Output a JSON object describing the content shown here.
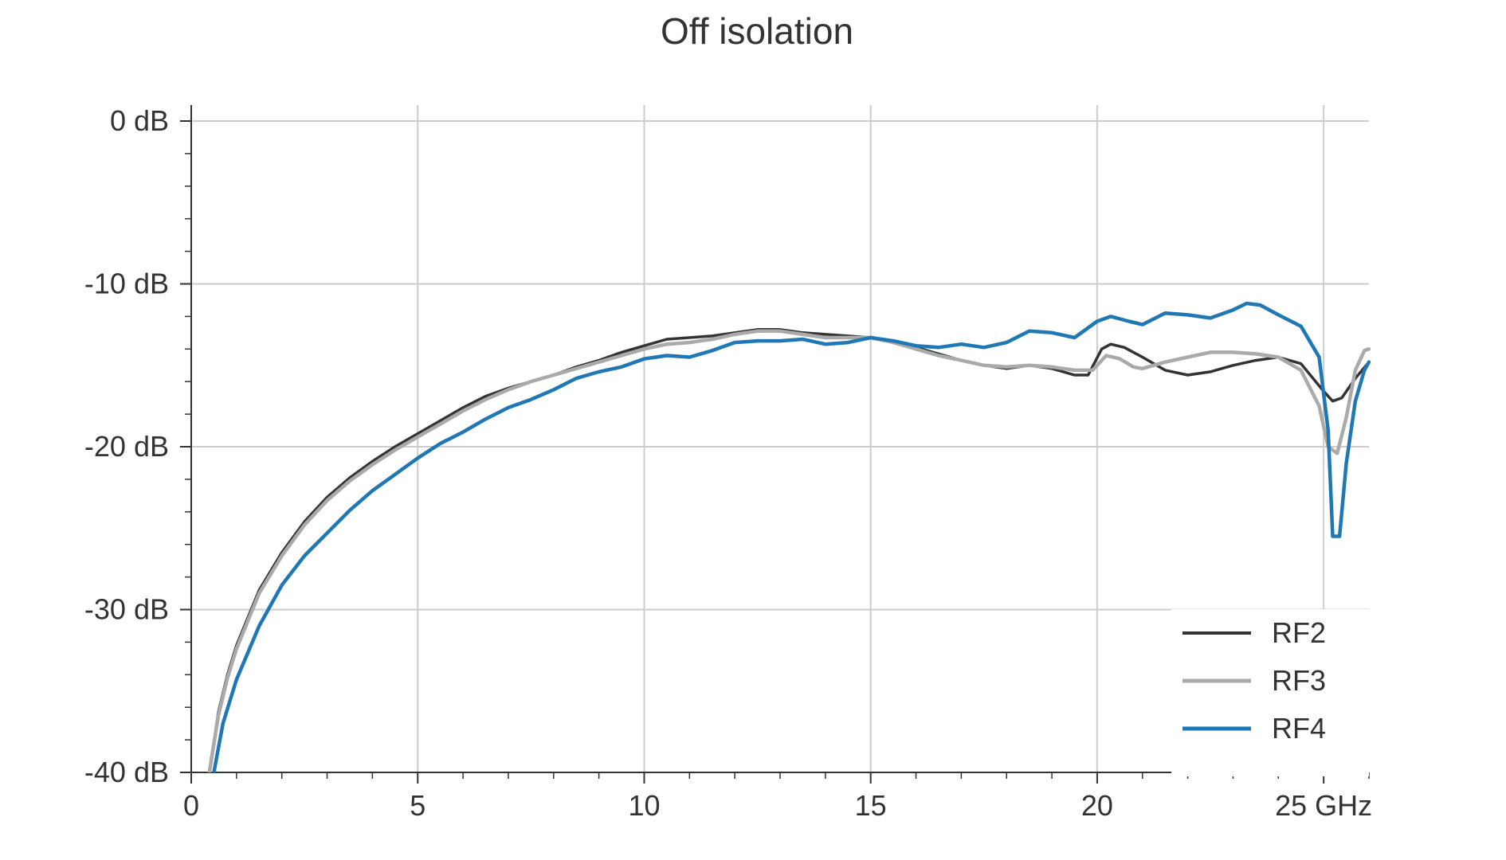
{
  "chart_data": {
    "type": "line",
    "title": "Off isolation",
    "xlabel": "",
    "ylabel": "",
    "xlim": [
      0,
      26
    ],
    "ylim": [
      -40,
      0
    ],
    "x_ticks": [
      {
        "value": 0,
        "label": "0"
      },
      {
        "value": 5,
        "label": "5"
      },
      {
        "value": 10,
        "label": "10"
      },
      {
        "value": 15,
        "label": "15"
      },
      {
        "value": 20,
        "label": "20"
      },
      {
        "value": 25,
        "label": "25 GHz"
      }
    ],
    "y_ticks": [
      {
        "value": 0,
        "label": "0 dB"
      },
      {
        "value": -10,
        "label": "-10 dB"
      },
      {
        "value": -20,
        "label": "-20 dB"
      },
      {
        "value": -30,
        "label": "-30 dB"
      },
      {
        "value": -40,
        "label": "-40 dB"
      }
    ],
    "x_minor_step": 1,
    "y_minor_step": 2,
    "grid": true,
    "legend_position": "bottom-right",
    "series": [
      {
        "name": "RF2",
        "color": "#333333",
        "points": [
          [
            0.4,
            -40
          ],
          [
            0.6,
            -36.3
          ],
          [
            0.8,
            -34
          ],
          [
            1,
            -32.2
          ],
          [
            1.5,
            -28.8
          ],
          [
            2,
            -26.5
          ],
          [
            2.5,
            -24.6
          ],
          [
            3,
            -23.1
          ],
          [
            3.5,
            -21.9
          ],
          [
            4,
            -20.9
          ],
          [
            4.5,
            -20
          ],
          [
            5,
            -19.2
          ],
          [
            5.5,
            -18.4
          ],
          [
            6,
            -17.6
          ],
          [
            6.5,
            -16.9
          ],
          [
            7,
            -16.4
          ],
          [
            7.5,
            -16
          ],
          [
            8,
            -15.6
          ],
          [
            8.5,
            -15.1
          ],
          [
            9,
            -14.7
          ],
          [
            9.5,
            -14.2
          ],
          [
            10,
            -13.8
          ],
          [
            10.5,
            -13.4
          ],
          [
            11,
            -13.3
          ],
          [
            11.5,
            -13.2
          ],
          [
            12,
            -13
          ],
          [
            12.5,
            -12.8
          ],
          [
            13,
            -12.8
          ],
          [
            13.5,
            -13
          ],
          [
            14,
            -13.1
          ],
          [
            14.5,
            -13.2
          ],
          [
            15,
            -13.3
          ],
          [
            15.5,
            -13.5
          ],
          [
            16,
            -13.9
          ],
          [
            16.5,
            -14.3
          ],
          [
            17,
            -14.7
          ],
          [
            17.5,
            -15
          ],
          [
            18,
            -15.2
          ],
          [
            18.5,
            -15
          ],
          [
            19,
            -15.2
          ],
          [
            19.5,
            -15.6
          ],
          [
            19.8,
            -15.6
          ],
          [
            20.1,
            -14
          ],
          [
            20.3,
            -13.7
          ],
          [
            20.6,
            -13.9
          ],
          [
            21,
            -14.5
          ],
          [
            21.5,
            -15.3
          ],
          [
            22,
            -15.6
          ],
          [
            22.5,
            -15.4
          ],
          [
            23,
            -15
          ],
          [
            23.5,
            -14.7
          ],
          [
            24,
            -14.5
          ],
          [
            24.5,
            -14.9
          ],
          [
            25,
            -16.6
          ],
          [
            25.2,
            -17.2
          ],
          [
            25.4,
            -17
          ],
          [
            25.7,
            -15.8
          ],
          [
            26,
            -14.8
          ]
        ]
      },
      {
        "name": "RF3",
        "color": "#aaaaaa",
        "points": [
          [
            0.4,
            -40
          ],
          [
            0.6,
            -36.5
          ],
          [
            0.8,
            -34.2
          ],
          [
            1,
            -32.4
          ],
          [
            1.5,
            -29
          ],
          [
            2,
            -26.7
          ],
          [
            2.5,
            -24.8
          ],
          [
            3,
            -23.3
          ],
          [
            3.5,
            -22.1
          ],
          [
            4,
            -21.1
          ],
          [
            4.5,
            -20.2
          ],
          [
            5,
            -19.4
          ],
          [
            5.5,
            -18.6
          ],
          [
            6,
            -17.8
          ],
          [
            6.5,
            -17.1
          ],
          [
            7,
            -16.5
          ],
          [
            7.5,
            -16
          ],
          [
            8,
            -15.6
          ],
          [
            8.5,
            -15.2
          ],
          [
            9,
            -14.8
          ],
          [
            9.5,
            -14.4
          ],
          [
            10,
            -14
          ],
          [
            10.5,
            -13.7
          ],
          [
            11,
            -13.6
          ],
          [
            11.5,
            -13.4
          ],
          [
            12,
            -13.1
          ],
          [
            12.5,
            -12.9
          ],
          [
            13,
            -12.9
          ],
          [
            13.5,
            -13.1
          ],
          [
            14,
            -13.3
          ],
          [
            14.5,
            -13.3
          ],
          [
            15,
            -13.3
          ],
          [
            15.5,
            -13.6
          ],
          [
            16,
            -14
          ],
          [
            16.5,
            -14.4
          ],
          [
            17,
            -14.7
          ],
          [
            17.5,
            -15
          ],
          [
            18,
            -15.1
          ],
          [
            18.5,
            -15
          ],
          [
            19,
            -15.1
          ],
          [
            19.5,
            -15.3
          ],
          [
            19.9,
            -15.3
          ],
          [
            20.2,
            -14.4
          ],
          [
            20.5,
            -14.6
          ],
          [
            20.8,
            -15.1
          ],
          [
            21,
            -15.2
          ],
          [
            21.5,
            -14.8
          ],
          [
            22,
            -14.5
          ],
          [
            22.5,
            -14.2
          ],
          [
            23,
            -14.2
          ],
          [
            23.5,
            -14.3
          ],
          [
            24,
            -14.5
          ],
          [
            24.5,
            -15.3
          ],
          [
            24.9,
            -17.5
          ],
          [
            25.1,
            -20
          ],
          [
            25.3,
            -20.4
          ],
          [
            25.5,
            -18.2
          ],
          [
            25.7,
            -15.3
          ],
          [
            25.9,
            -14.1
          ],
          [
            26,
            -14
          ]
        ]
      },
      {
        "name": "RF4",
        "color": "#1f77b4",
        "points": [
          [
            0.5,
            -40
          ],
          [
            0.7,
            -37
          ],
          [
            1,
            -34.3
          ],
          [
            1.5,
            -31
          ],
          [
            2,
            -28.5
          ],
          [
            2.5,
            -26.7
          ],
          [
            3,
            -25.3
          ],
          [
            3.5,
            -23.9
          ],
          [
            4,
            -22.7
          ],
          [
            4.5,
            -21.7
          ],
          [
            5,
            -20.7
          ],
          [
            5.5,
            -19.8
          ],
          [
            6,
            -19.1
          ],
          [
            6.5,
            -18.3
          ],
          [
            7,
            -17.6
          ],
          [
            7.5,
            -17.1
          ],
          [
            8,
            -16.5
          ],
          [
            8.5,
            -15.8
          ],
          [
            9,
            -15.4
          ],
          [
            9.5,
            -15.1
          ],
          [
            10,
            -14.6
          ],
          [
            10.5,
            -14.4
          ],
          [
            11,
            -14.5
          ],
          [
            11.5,
            -14.1
          ],
          [
            12,
            -13.6
          ],
          [
            12.5,
            -13.5
          ],
          [
            13,
            -13.5
          ],
          [
            13.5,
            -13.4
          ],
          [
            14,
            -13.7
          ],
          [
            14.5,
            -13.6
          ],
          [
            15,
            -13.3
          ],
          [
            15.5,
            -13.5
          ],
          [
            16,
            -13.8
          ],
          [
            16.5,
            -13.9
          ],
          [
            17,
            -13.7
          ],
          [
            17.5,
            -13.9
          ],
          [
            18,
            -13.6
          ],
          [
            18.5,
            -12.9
          ],
          [
            19,
            -13
          ],
          [
            19.5,
            -13.3
          ],
          [
            20,
            -12.3
          ],
          [
            20.3,
            -12
          ],
          [
            20.7,
            -12.3
          ],
          [
            21,
            -12.5
          ],
          [
            21.5,
            -11.8
          ],
          [
            22,
            -11.9
          ],
          [
            22.5,
            -12.1
          ],
          [
            23,
            -11.6
          ],
          [
            23.3,
            -11.2
          ],
          [
            23.6,
            -11.3
          ],
          [
            24,
            -11.9
          ],
          [
            24.5,
            -12.6
          ],
          [
            24.9,
            -14.5
          ],
          [
            25.1,
            -19
          ],
          [
            25.2,
            -25.5
          ],
          [
            25.35,
            -25.5
          ],
          [
            25.5,
            -21
          ],
          [
            25.7,
            -17.2
          ],
          [
            25.9,
            -15.3
          ],
          [
            26,
            -14.8
          ]
        ]
      }
    ]
  }
}
